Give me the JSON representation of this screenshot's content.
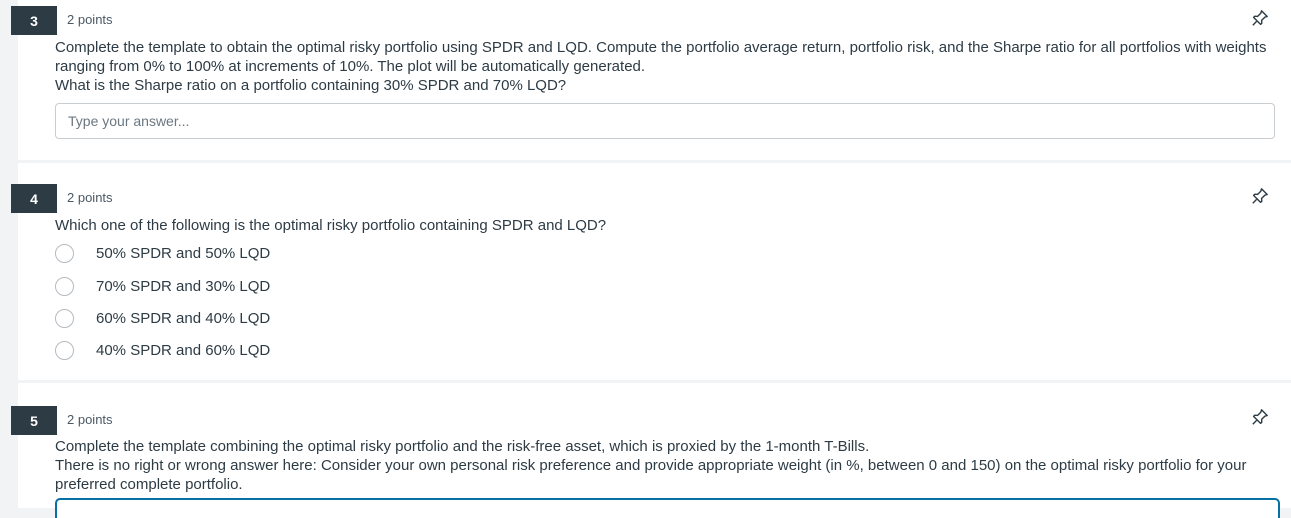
{
  "questions": [
    {
      "number": "3",
      "points": "2 points",
      "text_lines": [
        "Complete the template to obtain the optimal risky portfolio using SPDR and LQD. Compute the portfolio average return, portfolio risk, and the Sharpe ratio for all portfolios with weights ranging from 0% to 100% at increments of 10%. The plot will be automatically generated.",
        "What is the Sharpe ratio on a portfolio containing 30% SPDR and 70% LQD?"
      ],
      "answer_placeholder": "Type your answer...",
      "answer_value": ""
    },
    {
      "number": "4",
      "points": "2 points",
      "text": "Which one of the following is the optimal risky portfolio containing SPDR and LQD?",
      "options": [
        "50% SPDR and 50% LQD",
        "70% SPDR and 30% LQD",
        "60% SPDR and 40% LQD",
        "40% SPDR and 60% LQD"
      ]
    },
    {
      "number": "5",
      "points": "2 points",
      "text_lines": [
        "Complete the template combining the optimal risky portfolio and the risk-free asset, which is proxied by the 1-month T-Bills.",
        "There is no right or wrong answer here: Consider your own personal risk preference and provide appropriate weight (in %, between 0 and 150) on the optimal risky portfolio for your preferred complete portfolio."
      ]
    }
  ],
  "icons": {
    "pin": "pin-icon",
    "radio": "radio-button"
  },
  "colors": {
    "number_badge": "#2d3b45",
    "focus_border": "#0770a3",
    "background": "#f2f3f4"
  }
}
